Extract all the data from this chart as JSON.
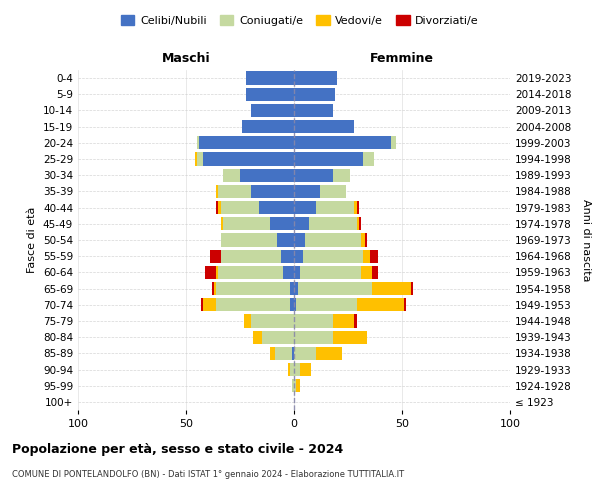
{
  "age_groups": [
    "100+",
    "95-99",
    "90-94",
    "85-89",
    "80-84",
    "75-79",
    "70-74",
    "65-69",
    "60-64",
    "55-59",
    "50-54",
    "45-49",
    "40-44",
    "35-39",
    "30-34",
    "25-29",
    "20-24",
    "15-19",
    "10-14",
    "5-9",
    "0-4"
  ],
  "birth_years": [
    "≤ 1923",
    "1924-1928",
    "1929-1933",
    "1934-1938",
    "1939-1943",
    "1944-1948",
    "1949-1953",
    "1954-1958",
    "1959-1963",
    "1964-1968",
    "1969-1973",
    "1974-1978",
    "1979-1983",
    "1984-1988",
    "1989-1993",
    "1994-1998",
    "1999-2003",
    "2004-2008",
    "2009-2013",
    "2014-2018",
    "2019-2023"
  ],
  "males": {
    "celibi": [
      0,
      0,
      0,
      1,
      0,
      0,
      2,
      2,
      5,
      6,
      8,
      11,
      16,
      20,
      25,
      42,
      44,
      24,
      20,
      22,
      22
    ],
    "coniugati": [
      0,
      1,
      2,
      8,
      15,
      20,
      34,
      34,
      30,
      28,
      26,
      22,
      18,
      15,
      8,
      3,
      1,
      0,
      0,
      0,
      0
    ],
    "vedovi": [
      0,
      0,
      1,
      2,
      4,
      3,
      6,
      1,
      1,
      0,
      0,
      1,
      1,
      1,
      0,
      1,
      0,
      0,
      0,
      0,
      0
    ],
    "divorziati": [
      0,
      0,
      0,
      0,
      0,
      0,
      1,
      1,
      5,
      5,
      0,
      0,
      1,
      0,
      0,
      0,
      0,
      0,
      0,
      0,
      0
    ]
  },
  "females": {
    "nubili": [
      0,
      0,
      0,
      0,
      0,
      0,
      1,
      2,
      3,
      4,
      5,
      7,
      10,
      12,
      18,
      32,
      45,
      28,
      18,
      19,
      20
    ],
    "coniugate": [
      0,
      1,
      3,
      10,
      18,
      18,
      28,
      34,
      28,
      28,
      26,
      22,
      18,
      12,
      8,
      5,
      2,
      0,
      0,
      0,
      0
    ],
    "vedove": [
      0,
      2,
      5,
      12,
      16,
      10,
      22,
      18,
      5,
      3,
      2,
      1,
      1,
      0,
      0,
      0,
      0,
      0,
      0,
      0,
      0
    ],
    "divorziate": [
      0,
      0,
      0,
      0,
      0,
      1,
      1,
      1,
      3,
      4,
      1,
      1,
      1,
      0,
      0,
      0,
      0,
      0,
      0,
      0,
      0
    ]
  },
  "colors": {
    "celibi": "#4472c4",
    "coniugati": "#c5d9a0",
    "vedovi": "#ffc000",
    "divorziati": "#cc0000"
  },
  "title": "Popolazione per età, sesso e stato civile - 2024",
  "subtitle": "COMUNE DI PONTELANDOLFO (BN) - Dati ISTAT 1° gennaio 2024 - Elaborazione TUTTITALIA.IT",
  "xlabel_left": "Maschi",
  "xlabel_right": "Femmine",
  "ylabel_left": "Fasce di età",
  "ylabel_right": "Anni di nascita",
  "xlim": 100,
  "legend_labels": [
    "Celibi/Nubili",
    "Coniugati/e",
    "Vedovi/e",
    "Divorziati/e"
  ],
  "background_color": "#ffffff",
  "grid_color": "#cccccc"
}
